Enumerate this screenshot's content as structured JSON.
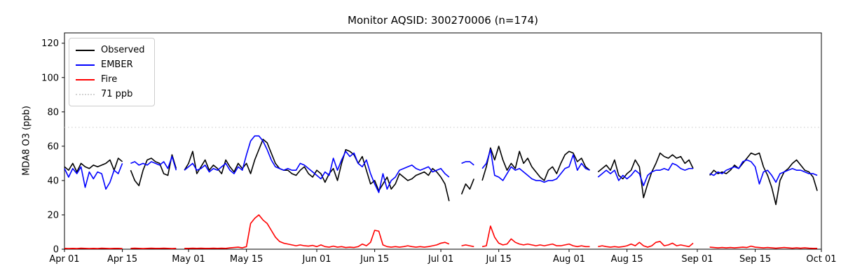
{
  "chart_data": {
    "type": "line",
    "title": "Monitor AQSID: 300270006 (n=174)",
    "xlabel": "",
    "ylabel": "MDA8 O3 (ppb)",
    "n_label": 174,
    "grid": false,
    "legend_position": "upper left",
    "ylim": [
      0,
      126
    ],
    "y_ticks": [
      0,
      20,
      40,
      60,
      80,
      100,
      120
    ],
    "x_range_days": 183,
    "x_start": "Apr 01",
    "x_end": "Oct 01",
    "x_ticks": [
      {
        "label": "Apr 01",
        "day": 0
      },
      {
        "label": "Apr 15",
        "day": 14
      },
      {
        "label": "May 01",
        "day": 30
      },
      {
        "label": "May 15",
        "day": 44
      },
      {
        "label": "Jun 01",
        "day": 61
      },
      {
        "label": "Jun 15",
        "day": 75
      },
      {
        "label": "Jul 01",
        "day": 91
      },
      {
        "label": "Jul 15",
        "day": 105
      },
      {
        "label": "Aug 01",
        "day": 122
      },
      {
        "label": "Aug 15",
        "day": 136
      },
      {
        "label": "Sep 01",
        "day": 153
      },
      {
        "label": "Sep 15",
        "day": 167
      },
      {
        "label": "Oct 01",
        "day": 183
      }
    ],
    "threshold": {
      "value": 71,
      "label": "71 ppb",
      "color": "#d3d3d3",
      "style": "dotted"
    },
    "legend": [
      {
        "label": "Observed",
        "color": "#000000",
        "style": "solid"
      },
      {
        "label": "EMBER",
        "color": "#0000ff",
        "style": "solid"
      },
      {
        "label": "Fire",
        "color": "#ff0000",
        "style": "solid"
      },
      {
        "label": "71 ppb",
        "color": "#d3d3d3",
        "style": "dotted"
      }
    ],
    "series": [
      {
        "name": "Observed",
        "color": "#000000",
        "values": [
          48,
          46,
          50,
          45,
          50,
          48,
          47,
          49,
          48,
          49,
          50,
          52,
          46,
          53,
          51,
          null,
          46,
          40,
          37,
          46,
          52,
          53,
          51,
          50,
          44,
          43,
          55,
          47,
          null,
          46,
          50,
          57,
          44,
          48,
          52,
          46,
          49,
          47,
          44,
          52,
          48,
          45,
          50,
          47,
          50,
          44,
          52,
          58,
          64,
          62,
          56,
          50,
          47,
          46,
          46,
          44,
          43,
          46,
          48,
          44,
          42,
          46,
          44,
          39,
          44,
          47,
          40,
          50,
          58,
          57,
          55,
          50,
          54,
          46,
          38,
          40,
          34,
          38,
          42,
          35,
          38,
          44,
          42,
          40,
          41,
          43,
          44,
          45,
          43,
          47,
          45,
          42,
          38,
          28,
          null,
          null,
          32,
          38,
          35,
          41,
          null,
          40,
          48,
          59,
          52,
          60,
          52,
          46,
          50,
          47,
          57,
          50,
          53,
          48,
          45,
          42,
          40,
          46,
          48,
          44,
          50,
          55,
          57,
          56,
          51,
          53,
          48,
          46,
          null,
          45,
          47,
          49,
          46,
          52,
          43,
          41,
          44,
          46,
          52,
          48,
          30,
          38,
          45,
          50,
          56,
          54,
          53,
          55,
          53,
          54,
          50,
          52,
          47,
          null,
          null,
          null,
          43,
          46,
          44,
          45,
          44,
          46,
          49,
          47,
          50,
          53,
          56,
          55,
          56,
          48,
          43,
          36,
          26,
          40,
          45,
          47,
          50,
          52,
          49,
          46,
          45,
          42,
          34
        ]
      },
      {
        "name": "EMBER",
        "color": "#0000ff",
        "values": [
          47,
          42,
          47,
          44,
          48,
          36,
          45,
          41,
          45,
          44,
          35,
          39,
          46,
          44,
          50,
          null,
          50,
          51,
          49,
          50,
          49,
          51,
          50,
          49,
          51,
          47,
          54,
          46,
          null,
          46,
          48,
          50,
          46,
          47,
          49,
          45,
          47,
          46,
          48,
          50,
          46,
          44,
          48,
          46,
          55,
          63,
          66,
          66,
          63,
          58,
          52,
          48,
          47,
          46,
          47,
          46,
          46,
          50,
          49,
          47,
          45,
          43,
          41,
          45,
          43,
          53,
          46,
          52,
          57,
          54,
          56,
          50,
          48,
          52,
          44,
          38,
          33,
          44,
          35,
          40,
          42,
          46,
          47,
          48,
          49,
          47,
          46,
          47,
          48,
          45,
          46,
          47,
          44,
          42,
          null,
          null,
          50,
          51,
          51,
          49,
          null,
          47,
          50,
          58,
          43,
          42,
          40,
          44,
          48,
          46,
          47,
          45,
          43,
          41,
          40,
          40,
          39,
          40,
          40,
          41,
          44,
          47,
          48,
          55,
          46,
          50,
          47,
          46,
          null,
          42,
          44,
          46,
          44,
          46,
          40,
          43,
          41,
          43,
          46,
          44,
          37,
          43,
          45,
          46,
          46,
          47,
          46,
          50,
          49,
          47,
          46,
          47,
          47,
          null,
          null,
          null,
          44,
          43,
          45,
          44,
          46,
          47,
          48,
          47,
          51,
          52,
          51,
          48,
          38,
          45,
          46,
          43,
          39,
          44,
          45,
          46,
          47,
          46,
          46,
          45,
          44,
          44,
          43
        ]
      },
      {
        "name": "Fire",
        "color": "#ff0000",
        "values": [
          0.5,
          0.4,
          0.5,
          0.4,
          0.6,
          0.5,
          0.4,
          0.5,
          0.4,
          0.6,
          0.5,
          0.4,
          0.5,
          0.5,
          0.4,
          null,
          0.5,
          0.6,
          0.5,
          0.4,
          0.5,
          0.6,
          0.5,
          0.5,
          0.6,
          0.5,
          0.4,
          0.5,
          null,
          0.5,
          0.5,
          0.6,
          0.5,
          0.6,
          0.5,
          0.5,
          0.6,
          0.5,
          0.6,
          0.5,
          0.8,
          1,
          1.2,
          0.8,
          1.5,
          15,
          18,
          20,
          17,
          15,
          11,
          7,
          4.5,
          3.5,
          3,
          2.5,
          2,
          2.5,
          2,
          1.8,
          2.2,
          1.5,
          2.5,
          1.5,
          1.2,
          1.8,
          1.2,
          1.5,
          1,
          1.2,
          1,
          1.5,
          3,
          2,
          4,
          11,
          10.5,
          2.5,
          1.5,
          1.2,
          1.5,
          1.2,
          1.5,
          2,
          1.5,
          1.2,
          1.5,
          1.2,
          1.5,
          2,
          2.5,
          3.5,
          4,
          3,
          null,
          null,
          2,
          2.5,
          2,
          1.5,
          null,
          1.5,
          2,
          13.5,
          7,
          3.5,
          2.5,
          3,
          6,
          4,
          3,
          2.5,
          3,
          2.5,
          2,
          2.5,
          2,
          2.5,
          3,
          2,
          2,
          2.5,
          3,
          2,
          1.5,
          2,
          1.5,
          1.5,
          null,
          1.5,
          2,
          1.5,
          1.2,
          1.5,
          1.2,
          1.5,
          2,
          3,
          2,
          4,
          2,
          1.2,
          2,
          4,
          4.5,
          2,
          2.5,
          3.5,
          2,
          2.5,
          2,
          1.5,
          3.5,
          null,
          null,
          null,
          1.2,
          1,
          0.8,
          1,
          0.8,
          1,
          0.8,
          1,
          1.2,
          1,
          1.8,
          1.2,
          1,
          0.8,
          1,
          0.8,
          0.6,
          0.8,
          1,
          0.8,
          0.6,
          0.8,
          0.6,
          0.8,
          0.6,
          0.5,
          0.5
        ]
      }
    ]
  }
}
